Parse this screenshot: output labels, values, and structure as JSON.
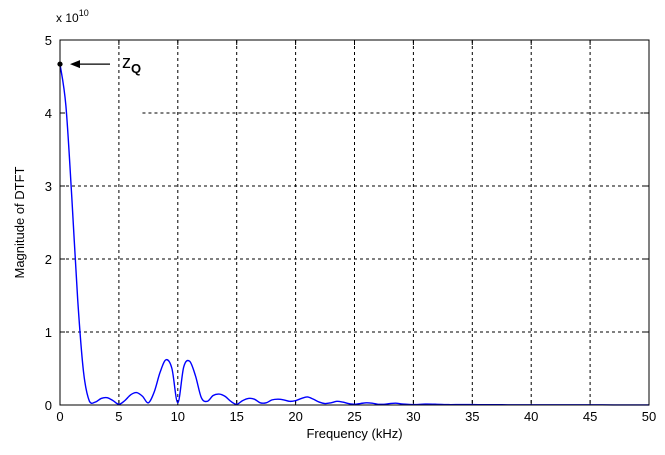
{
  "chart_data": {
    "type": "line",
    "title": "",
    "xlabel": "Frequency (kHz)",
    "ylabel": "Magnitude of DTFT",
    "xlim": [
      0,
      50
    ],
    "ylim": [
      0,
      5
    ],
    "xticks": [
      0,
      5,
      10,
      15,
      20,
      25,
      30,
      35,
      40,
      45,
      50
    ],
    "xtick_labels": [
      "0",
      "5",
      "10",
      "15",
      "20",
      "25",
      "30",
      "35",
      "40",
      "45",
      "50"
    ],
    "yticks": [
      0,
      1,
      2,
      3,
      4,
      5
    ],
    "ytick_labels": [
      "0",
      "1",
      "2",
      "3",
      "4",
      "5"
    ],
    "y_multiplier_base": "x 10",
    "y_multiplier_exponent": "10",
    "grid": true,
    "line_color": "#0000ff",
    "series": [
      {
        "x": [
          0,
          0.5,
          1,
          1.5,
          2,
          2.5,
          3,
          3.5,
          4,
          4.5,
          5,
          5.5,
          6,
          6.5,
          7,
          7.5,
          8,
          8.5,
          9,
          9.5,
          10,
          10.5,
          11,
          11.5,
          12,
          12.5,
          13,
          13.5,
          14,
          14.5,
          15,
          15.5,
          16,
          16.5,
          17,
          17.5,
          18,
          18.5,
          19,
          19.5,
          20,
          20.5,
          21,
          21.5,
          22,
          22.5,
          23,
          23.5,
          24,
          24.5,
          25,
          25.5,
          26,
          26.5,
          27,
          27.5,
          28,
          28.5,
          29,
          29.5,
          30,
          31,
          32,
          33,
          34,
          35,
          36,
          37,
          38,
          39,
          40,
          42,
          44,
          46,
          48,
          50
        ],
        "y": [
          4.67,
          4.1,
          2.85,
          1.45,
          0.45,
          0.05,
          0.04,
          0.09,
          0.1,
          0.06,
          0.01,
          0.06,
          0.14,
          0.17,
          0.12,
          0.03,
          0.18,
          0.45,
          0.62,
          0.5,
          0.03,
          0.52,
          0.6,
          0.4,
          0.1,
          0.05,
          0.13,
          0.15,
          0.12,
          0.05,
          0.01,
          0.06,
          0.09,
          0.08,
          0.03,
          0.03,
          0.07,
          0.08,
          0.07,
          0.05,
          0.06,
          0.09,
          0.11,
          0.08,
          0.04,
          0.02,
          0.03,
          0.05,
          0.04,
          0.02,
          0.01,
          0.02,
          0.03,
          0.025,
          0.01,
          0.01,
          0.02,
          0.025,
          0.015,
          0.01,
          0.005,
          0.012,
          0.01,
          0.005,
          0.006,
          0.005,
          0.004,
          0.004,
          0.003,
          0.003,
          0.003,
          0.002,
          0.002,
          0.002,
          0.001,
          0.001
        ]
      }
    ],
    "annotation": {
      "text": "z",
      "subscript": "Q",
      "point": [
        0,
        4.67
      ]
    }
  }
}
